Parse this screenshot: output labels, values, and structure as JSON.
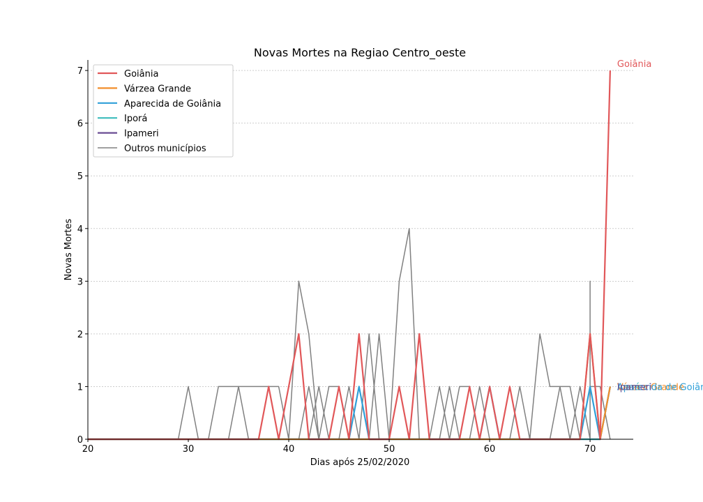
{
  "chart_data": {
    "type": "line",
    "title": "Novas Mortes na Regiao Centro_oeste",
    "xlabel": "Dias após 25/02/2020",
    "ylabel": "Novas Mortes",
    "xlim": [
      20,
      74.3
    ],
    "ylim": [
      0,
      7.2
    ],
    "xticks": [
      20,
      30,
      40,
      50,
      60,
      70
    ],
    "yticks": [
      0,
      1,
      2,
      3,
      4,
      5,
      6,
      7
    ],
    "grid": "horizontal dashed",
    "legend_position": "top-left",
    "series": [
      {
        "name": "Goiânia",
        "color": "#e15759",
        "x": [
          20,
          21,
          22,
          23,
          24,
          25,
          26,
          27,
          28,
          29,
          30,
          31,
          32,
          33,
          34,
          35,
          36,
          37,
          38,
          39,
          40,
          41,
          42,
          43,
          44,
          45,
          46,
          47,
          48,
          49,
          50,
          51,
          52,
          53,
          54,
          55,
          56,
          57,
          58,
          59,
          60,
          61,
          62,
          63,
          64,
          65,
          66,
          67,
          68,
          69,
          70,
          71,
          72
        ],
        "y": [
          0,
          0,
          0,
          0,
          0,
          0,
          0,
          0,
          0,
          0,
          0,
          0,
          0,
          0,
          0,
          0,
          0,
          0,
          1,
          0,
          1,
          2,
          0,
          0,
          0,
          1,
          0,
          2,
          0,
          0,
          0,
          1,
          0,
          2,
          0,
          0,
          0,
          0,
          1,
          0,
          1,
          0,
          1,
          0,
          0,
          0,
          0,
          0,
          0,
          0,
          2,
          0,
          7
        ],
        "end_label": "Goiânia"
      },
      {
        "name": "Várzea Grande",
        "color": "#f28e2b",
        "x": [
          20,
          69,
          70,
          71,
          72
        ],
        "y": [
          0,
          0,
          2,
          0,
          1
        ],
        "end_label": "Várzea Grande"
      },
      {
        "name": "Aparecida de Goiânia",
        "color": "#2f9fd8",
        "x": [
          20,
          46,
          47,
          48,
          49,
          59,
          60,
          61,
          62,
          63,
          64,
          69,
          70,
          71,
          72
        ],
        "y": [
          0,
          0,
          1,
          0,
          0,
          0,
          1,
          0,
          0,
          0,
          0,
          0,
          1,
          0,
          1
        ],
        "end_label": "Aparecida de Goiânia"
      },
      {
        "name": "Iporá",
        "color": "#3cbcbc",
        "x": [
          20,
          71,
          72
        ],
        "y": [
          0,
          0,
          1
        ],
        "end_label": "Iporá"
      },
      {
        "name": "Ipameri",
        "color": "#6a4c93",
        "x": [
          20,
          71,
          72
        ],
        "y": [
          0,
          0,
          1
        ],
        "end_label": "Ipameri"
      }
    ],
    "other_series": {
      "name": "Outros municípios",
      "color": "#808080",
      "lines": [
        {
          "x": [
            29,
            30,
            31
          ],
          "y": [
            0,
            1,
            0
          ]
        },
        {
          "x": [
            32,
            33,
            34,
            35,
            36,
            37,
            38,
            39,
            40
          ],
          "y": [
            0,
            1,
            1,
            1,
            1,
            1,
            1,
            1,
            0
          ]
        },
        {
          "x": [
            34,
            35,
            36
          ],
          "y": [
            0,
            1,
            0
          ]
        },
        {
          "x": [
            40,
            41,
            42,
            43
          ],
          "y": [
            0,
            3,
            2,
            0
          ]
        },
        {
          "x": [
            41,
            42,
            43
          ],
          "y": [
            0,
            1,
            0
          ]
        },
        {
          "x": [
            42,
            43,
            44
          ],
          "y": [
            0,
            1,
            0
          ]
        },
        {
          "x": [
            43,
            44,
            45,
            46
          ],
          "y": [
            0,
            1,
            1,
            0
          ]
        },
        {
          "x": [
            45,
            46,
            47
          ],
          "y": [
            0,
            1,
            0
          ]
        },
        {
          "x": [
            46,
            47,
            48
          ],
          "y": [
            0,
            1,
            0
          ]
        },
        {
          "x": [
            47,
            48,
            49
          ],
          "y": [
            0,
            2,
            0
          ]
        },
        {
          "x": [
            48,
            49,
            50
          ],
          "y": [
            0,
            2,
            0
          ]
        },
        {
          "x": [
            50,
            51,
            52,
            53
          ],
          "y": [
            0,
            3,
            4,
            0
          ]
        },
        {
          "x": [
            54,
            55,
            56
          ],
          "y": [
            0,
            1,
            0
          ]
        },
        {
          "x": [
            55,
            56,
            57
          ],
          "y": [
            0,
            1,
            0
          ]
        },
        {
          "x": [
            56,
            57,
            58,
            59
          ],
          "y": [
            0,
            1,
            1,
            0
          ]
        },
        {
          "x": [
            58,
            59,
            60
          ],
          "y": [
            0,
            1,
            0
          ]
        },
        {
          "x": [
            62,
            63,
            64
          ],
          "y": [
            0,
            1,
            0
          ]
        },
        {
          "x": [
            64,
            65,
            66,
            67,
            68,
            69
          ],
          "y": [
            0,
            2,
            1,
            1,
            1,
            0
          ]
        },
        {
          "x": [
            66,
            67,
            68
          ],
          "y": [
            0,
            1,
            0
          ]
        },
        {
          "x": [
            68,
            69,
            70
          ],
          "y": [
            0,
            1,
            0
          ]
        },
        {
          "x": [
            70,
            70,
            70
          ],
          "y": [
            0,
            3,
            0
          ]
        },
        {
          "x": [
            69,
            70,
            71,
            72
          ],
          "y": [
            0,
            1,
            1,
            0
          ]
        }
      ]
    }
  }
}
